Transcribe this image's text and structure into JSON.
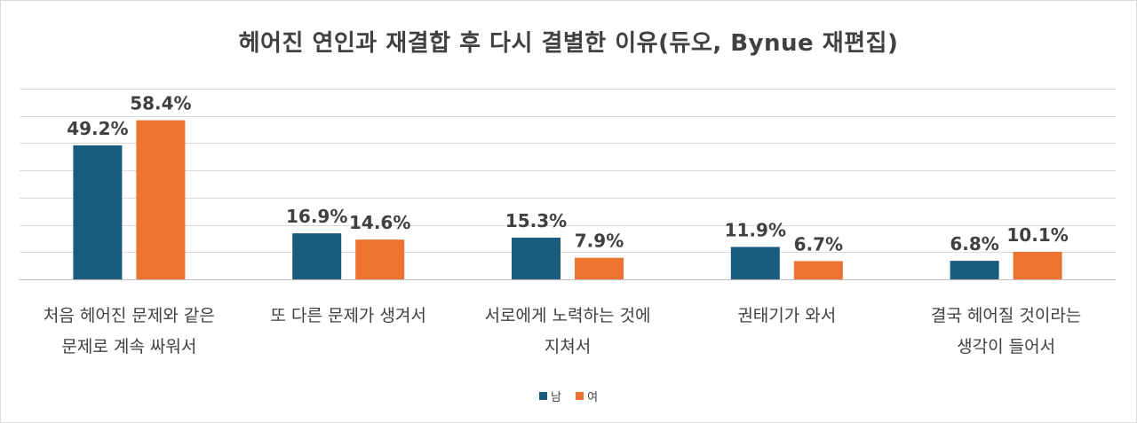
{
  "chart_data": {
    "type": "bar",
    "title": "헤어진 연인과 재결합 후 다시 결별한 이유(듀오, Bynue 재편집)",
    "categories": [
      [
        "처음 헤어진 문제와 같은",
        "문제로 계속 싸워서"
      ],
      [
        "또 다른 문제가 생겨서"
      ],
      [
        "서로에게 노력하는 것에",
        "지쳐서"
      ],
      [
        "권태기가 와서"
      ],
      [
        "결국 헤어질 것이라는",
        "생각이 들어서"
      ]
    ],
    "series": [
      {
        "name": "남",
        "color": "#1a5c7e",
        "values": [
          49.2,
          16.9,
          15.3,
          11.9,
          6.8
        ],
        "labels": [
          "49.2%",
          "16.9%",
          "15.3%",
          "11.9%",
          "6.8%"
        ]
      },
      {
        "name": "여",
        "color": "#ec7330",
        "values": [
          58.4,
          14.6,
          7.9,
          6.7,
          10.1
        ],
        "labels": [
          "58.4%",
          "14.6%",
          "7.9%",
          "6.7%",
          "10.1%"
        ]
      }
    ],
    "ylim": [
      0,
      70
    ],
    "grid": true,
    "legend": "bottom"
  }
}
